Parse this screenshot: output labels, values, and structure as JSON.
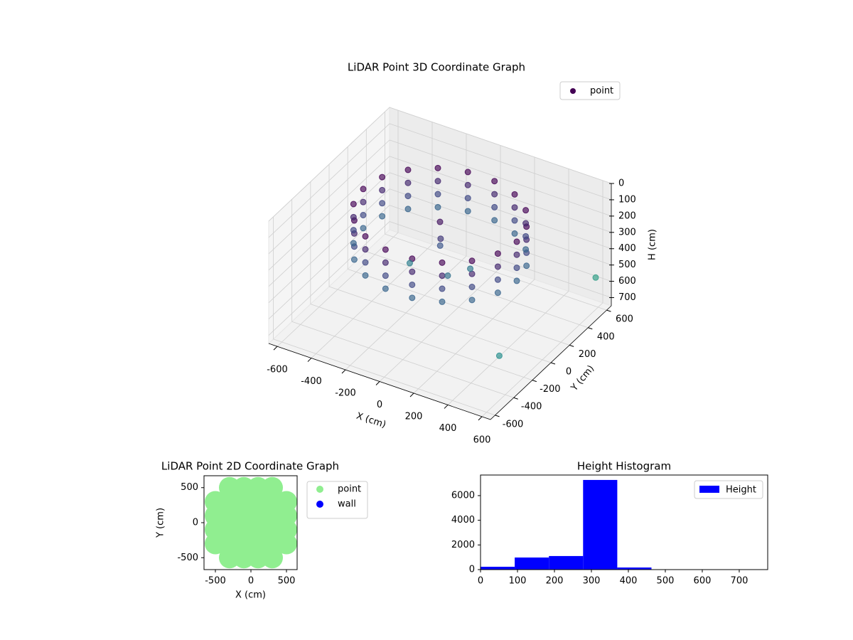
{
  "chart_data": [
    {
      "type": "scatter3d",
      "title": "LiDAR Point 3D Coordinate Graph",
      "xlabel": "X (cm)",
      "ylabel": "Y (cm)",
      "zlabel": "H (cm)",
      "xlim": [
        -650,
        650
      ],
      "ylim": [
        -650,
        650
      ],
      "zlim": [
        750,
        0
      ],
      "xticks": [
        -600,
        -400,
        -200,
        0,
        200,
        400,
        600
      ],
      "yticks": [
        -600,
        -400,
        -200,
        0,
        200,
        400,
        600
      ],
      "zticks": [
        0,
        100,
        200,
        300,
        400,
        500,
        600,
        700
      ],
      "grid": true,
      "cmap": "viridis",
      "legend": "upper right",
      "series": [
        {
          "name": "point",
          "color": "#440154",
          "x": [
            450,
            423,
            345,
            225,
            78,
            -78,
            -225,
            -345,
            -423,
            -450,
            -423,
            -345,
            -225,
            -78,
            78,
            225,
            345,
            423,
            450,
            423,
            345,
            225,
            78,
            -78,
            -225,
            -345,
            -423,
            -450,
            -423,
            -345,
            -225,
            -78,
            78,
            225,
            345,
            423,
            450,
            423,
            345,
            225,
            78,
            -78,
            -225,
            -345,
            -423,
            -450,
            -423,
            -345,
            -225,
            -78,
            78,
            225,
            345,
            423,
            450,
            423,
            345,
            225,
            78,
            -78,
            -225,
            -345,
            -423,
            -450,
            -423,
            -345,
            -225,
            -78,
            78,
            225,
            345,
            423,
            0,
            20,
            -10,
            100,
            150,
            -150,
            640,
            620
          ],
          "y": [
            0,
            154,
            289,
            390,
            443,
            443,
            390,
            289,
            154,
            0,
            -154,
            -289,
            -390,
            -443,
            -443,
            -390,
            -289,
            -154,
            0,
            154,
            289,
            390,
            443,
            443,
            390,
            289,
            154,
            0,
            -154,
            -289,
            -390,
            -443,
            -443,
            -390,
            -289,
            -154,
            0,
            154,
            289,
            390,
            443,
            443,
            390,
            289,
            154,
            0,
            -154,
            -289,
            -390,
            -443,
            -443,
            -390,
            -289,
            -154,
            0,
            154,
            289,
            390,
            443,
            443,
            390,
            289,
            154,
            0,
            -154,
            -289,
            -390,
            -443,
            -443,
            -390,
            -289,
            -154,
            0,
            -30,
            20,
            -100,
            50,
            -50,
            500,
            -500
          ],
          "z": [
            80,
            80,
            80,
            80,
            80,
            80,
            80,
            80,
            80,
            80,
            80,
            80,
            80,
            80,
            80,
            80,
            80,
            80,
            160,
            160,
            160,
            160,
            160,
            160,
            160,
            160,
            160,
            160,
            160,
            160,
            160,
            160,
            160,
            160,
            160,
            160,
            240,
            240,
            240,
            240,
            240,
            240,
            240,
            240,
            240,
            240,
            240,
            240,
            240,
            240,
            240,
            240,
            240,
            240,
            320,
            320,
            320,
            320,
            320,
            320,
            320,
            320,
            320,
            320,
            320,
            320,
            320,
            320,
            320,
            320,
            320,
            320,
            120,
            200,
            280,
            360,
            380,
            400,
            500,
            450
          ]
        }
      ]
    },
    {
      "type": "scatter",
      "title": "LiDAR Point 2D Coordinate Graph",
      "xlabel": "X (cm)",
      "ylabel": "Y (cm)",
      "xlim": [
        -660,
        650
      ],
      "ylim": [
        -670,
        670
      ],
      "xticks": [
        -500,
        0,
        500
      ],
      "yticks": [
        -500,
        0,
        500
      ],
      "legend": "outside right",
      "series": [
        {
          "name": "point",
          "color": "#90ee90",
          "x": [
            -300,
            -100,
            100,
            300,
            -500,
            -300,
            -100,
            100,
            300,
            500,
            -500,
            -300,
            -100,
            100,
            300,
            500,
            -500,
            -300,
            -100,
            100,
            300,
            500,
            -500,
            -300,
            -100,
            100,
            300,
            500,
            -300,
            -100,
            100,
            300
          ],
          "y": [
            -500,
            -500,
            -500,
            -500,
            -300,
            -300,
            -300,
            -300,
            -300,
            -300,
            -100,
            -100,
            -100,
            -100,
            -100,
            -100,
            100,
            100,
            100,
            100,
            100,
            100,
            300,
            300,
            300,
            300,
            300,
            300,
            500,
            500,
            500,
            500
          ]
        },
        {
          "name": "wall",
          "color": "#0000ff",
          "x": [],
          "y": []
        }
      ]
    },
    {
      "type": "histogram",
      "title": "Height Histogram",
      "bins": [
        0,
        92.5,
        185,
        277.5,
        370,
        462.5,
        555,
        647.5,
        740
      ],
      "xlim": [
        0,
        777
      ],
      "ylim": [
        0,
        7670
      ],
      "xticks": [
        0,
        100,
        200,
        300,
        400,
        500,
        600,
        700
      ],
      "yticks": [
        0,
        2000,
        4000,
        6000
      ],
      "legend": "upper right",
      "series": [
        {
          "name": "Height",
          "color": "#0000ff",
          "values": [
            230,
            980,
            1100,
            7270,
            170,
            12,
            8,
            5
          ]
        }
      ]
    }
  ]
}
